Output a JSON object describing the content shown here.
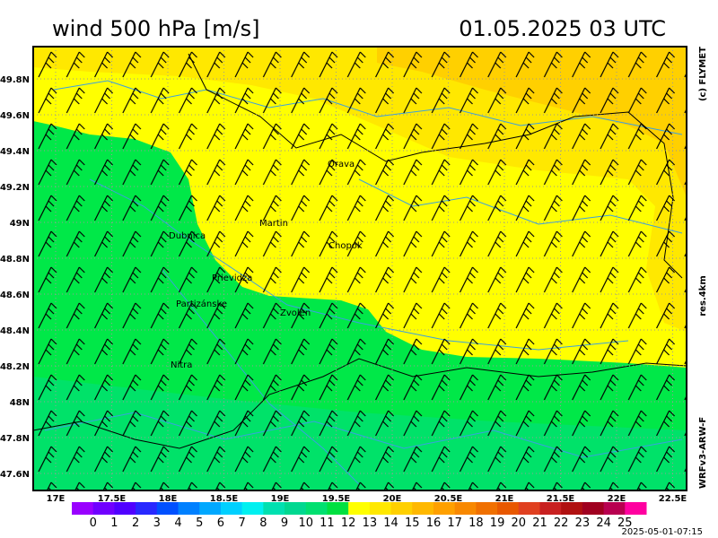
{
  "header": {
    "title": "wind 500 hPa [m/s]",
    "datetime": "01.05.2025   03 UTC"
  },
  "credits": {
    "copyright": "(c) FLYMET",
    "resolution": "res.4km",
    "model": "WRFv3-ARW-F"
  },
  "lat_labels": [
    "49.8N",
    "49.6N",
    "49.4N",
    "49.2N",
    "49N",
    "48.8N",
    "48.6N",
    "48.4N",
    "48.2N",
    "48N",
    "47.8N",
    "47.6N"
  ],
  "lon_labels": [
    "17E",
    "17.5E",
    "18E",
    "18.5E",
    "19E",
    "19.5E",
    "20E",
    "20.5E",
    "21E",
    "21.5E",
    "22E",
    "22.5E"
  ],
  "cities": [
    "Orava",
    "Martin",
    "Dubnica",
    "Chopok",
    "Prievidza",
    "Partizánske",
    "Zvolen",
    "Nitra"
  ],
  "colorbar": {
    "labels": [
      0,
      1,
      2,
      3,
      4,
      5,
      6,
      7,
      8,
      9,
      10,
      11,
      12,
      13,
      14,
      15,
      16,
      17,
      18,
      19,
      20,
      21,
      22,
      23,
      24,
      25
    ],
    "colors": [
      "#9900ff",
      "#7000ff",
      "#5000ff",
      "#2828ff",
      "#0050ff",
      "#0080ff",
      "#00a8ff",
      "#00d0ff",
      "#00f0f0",
      "#00e0b0",
      "#00d890",
      "#00e070",
      "#00e040",
      "#ffff00",
      "#ffe800",
      "#ffd000",
      "#ffb800",
      "#ffa000",
      "#f88800",
      "#f07000",
      "#e85800",
      "#e04020",
      "#c82020",
      "#b01010",
      "#a00020",
      "#b80050",
      "#ff00a0"
    ]
  },
  "timestamp": "2025-05-01-07:15"
}
